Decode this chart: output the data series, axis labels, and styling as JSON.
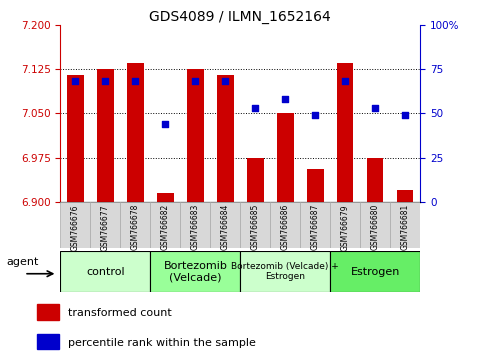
{
  "title": "GDS4089 / ILMN_1652164",
  "samples": [
    "GSM766676",
    "GSM766677",
    "GSM766678",
    "GSM766682",
    "GSM766683",
    "GSM766684",
    "GSM766685",
    "GSM766686",
    "GSM766687",
    "GSM766679",
    "GSM766680",
    "GSM766681"
  ],
  "bar_values": [
    7.115,
    7.125,
    7.135,
    6.915,
    7.125,
    7.115,
    6.975,
    7.05,
    6.955,
    7.135,
    6.975,
    6.92
  ],
  "bar_base": 6.9,
  "percentile_values": [
    68,
    68,
    68,
    44,
    68,
    68,
    53,
    58,
    49,
    68,
    53,
    49
  ],
  "ylim_left": [
    6.9,
    7.2
  ],
  "ylim_right": [
    0,
    100
  ],
  "yticks_left": [
    6.9,
    6.975,
    7.05,
    7.125,
    7.2
  ],
  "yticks_right": [
    0,
    25,
    50,
    75,
    100
  ],
  "bar_color": "#cc0000",
  "dot_color": "#0000cc",
  "groups": [
    {
      "label": "control",
      "start": 0,
      "end": 3,
      "color": "#ccffcc"
    },
    {
      "label": "Bortezomib\n(Velcade)",
      "start": 3,
      "end": 6,
      "color": "#99ff99"
    },
    {
      "label": "Bortezomib (Velcade) +\nEstrogen",
      "start": 6,
      "end": 9,
      "color": "#ccffcc"
    },
    {
      "label": "Estrogen",
      "start": 9,
      "end": 12,
      "color": "#66ee66"
    }
  ],
  "legend_items": [
    {
      "label": "transformed count",
      "color": "#cc0000"
    },
    {
      "label": "percentile rank within the sample",
      "color": "#0000cc"
    }
  ],
  "agent_label": "agent",
  "gridline_values": [
    7.125,
    7.05,
    6.975
  ],
  "sample_box_color": "#d8d8d8",
  "sample_box_edge": "#aaaaaa"
}
